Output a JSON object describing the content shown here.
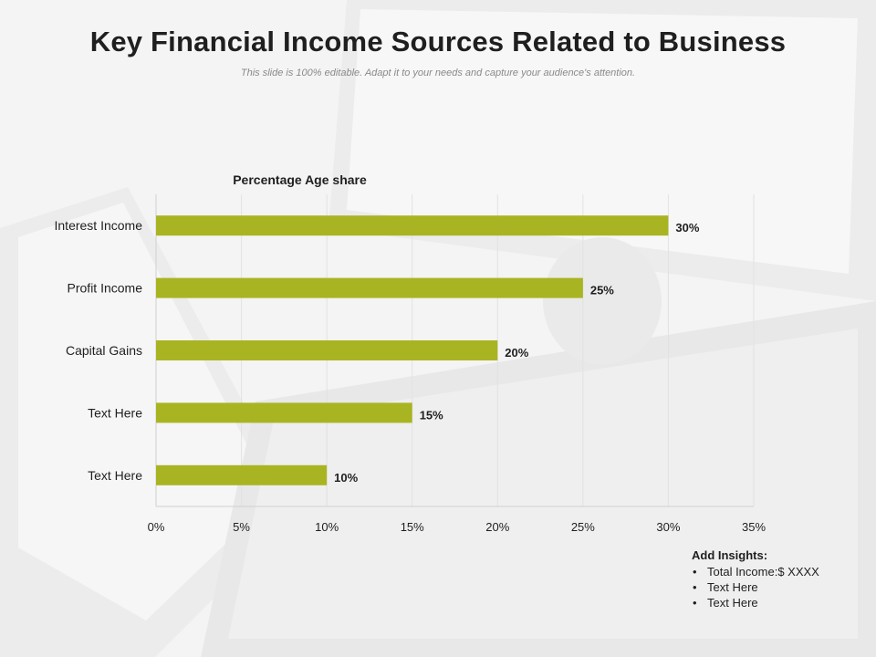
{
  "title": "Key Financial Income Sources Related to Business",
  "subtitle": "This slide is 100% editable. Adapt it to your needs and capture your audience's attention.",
  "colors": {
    "bar": "#a9b422",
    "text": "#1f1f1f",
    "grid": "#e2e2e2",
    "axis": "#d0d0d0"
  },
  "chart_data": {
    "type": "bar",
    "orientation": "horizontal",
    "title": "Percentage Age share",
    "categories": [
      "Interest Income",
      "Profit Income",
      "Capital Gains",
      "Text Here",
      "Text Here"
    ],
    "values": [
      30,
      25,
      20,
      15,
      10
    ],
    "data_labels": [
      "30%",
      "25%",
      "20%",
      "15%",
      "10%"
    ],
    "x_ticks": [
      "0%",
      "5%",
      "10%",
      "15%",
      "20%",
      "25%",
      "30%",
      "35%"
    ],
    "xlim": [
      0,
      35
    ],
    "grid": true
  },
  "insights": {
    "heading": "Add Insights:",
    "items": [
      "Total Income:$ XXXX",
      "Text Here",
      "Text Here"
    ]
  }
}
